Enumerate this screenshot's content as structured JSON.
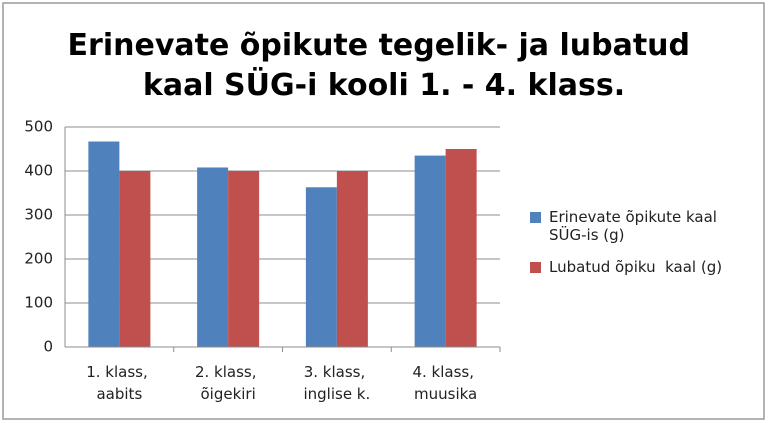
{
  "chart_data": {
    "type": "bar",
    "title": "Erinevate õpikute tegelik- ja lubatud kaal SÜG-i kooli 1. - 4. klass.",
    "categories": [
      "1. klass, aabits",
      "2. klass, õigekiri",
      "3. klass, inglise k.",
      "4. klass, muusika"
    ],
    "series": [
      {
        "name": "Erinevate õpikute kaal SÜG-is (g)",
        "color": "#4f81bd",
        "values": [
          467,
          408,
          363,
          435
        ]
      },
      {
        "name": "Lubatud õpiku  kaal (g)",
        "color": "#c0504d",
        "values": [
          400,
          400,
          400,
          450
        ]
      }
    ],
    "ylim": [
      0,
      500
    ],
    "yticks": [
      0,
      100,
      200,
      300,
      400,
      500
    ],
    "grid": true,
    "legend": "right"
  }
}
